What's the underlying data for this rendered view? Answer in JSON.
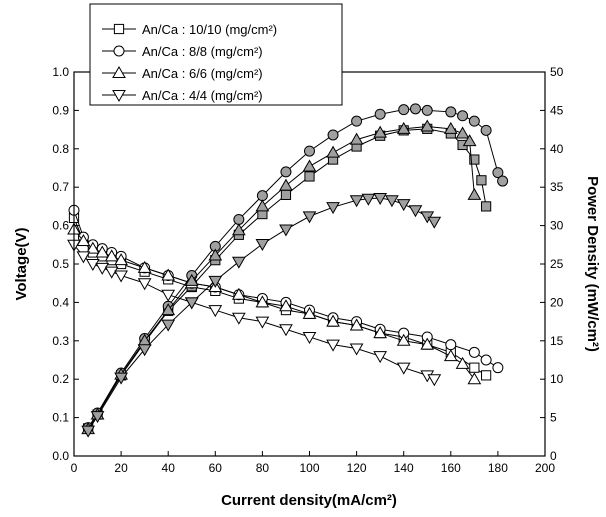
{
  "chart_data": {
    "type": "scatter",
    "xlabel": "Current density(mA/cm²)",
    "ylabel_left": "Voltage(V)",
    "ylabel_right": "Power Density (mW/cm²)",
    "xlim": [
      0,
      200
    ],
    "ylim_left": [
      0.0,
      1.0
    ],
    "ylim_right": [
      0,
      50
    ],
    "x_ticks": [
      "0",
      "20",
      "40",
      "60",
      "80",
      "100",
      "120",
      "140",
      "160",
      "180",
      "200"
    ],
    "y_left_ticks": [
      "0.0",
      "0.1",
      "0.2",
      "0.3",
      "0.4",
      "0.5",
      "0.6",
      "0.7",
      "0.8",
      "0.9",
      "1.0"
    ],
    "y_right_ticks": [
      "0",
      "5",
      "10",
      "15",
      "20",
      "25",
      "30",
      "35",
      "40",
      "45",
      "50"
    ],
    "grid": false,
    "legend_position": "top-left",
    "marker_colors": {
      "open": "#ffffff",
      "filled": "#a0a0a0",
      "stroke": "#000000"
    },
    "series": [
      {
        "name": "An/Ca : 10/10 (mg/cm²)",
        "marker": "square",
        "voltage": {
          "x": [
            0,
            4,
            8,
            12,
            16,
            20,
            30,
            40,
            50,
            60,
            70,
            80,
            90,
            100,
            110,
            120,
            130,
            140,
            150,
            160,
            170,
            175
          ],
          "y": [
            0.62,
            0.56,
            0.53,
            0.52,
            0.51,
            0.5,
            0.48,
            0.46,
            0.44,
            0.43,
            0.41,
            0.4,
            0.38,
            0.37,
            0.35,
            0.34,
            0.32,
            0.31,
            0.29,
            0.27,
            0.23,
            0.21
          ]
        },
        "power": {
          "x": [
            6,
            10,
            20,
            30,
            40,
            50,
            60,
            70,
            80,
            90,
            100,
            110,
            120,
            130,
            140,
            150,
            160,
            165,
            170,
            173,
            175
          ],
          "y": [
            3.6,
            5.4,
            10.5,
            14.8,
            18.9,
            22.1,
            25.5,
            28.8,
            31.5,
            34.0,
            36.4,
            38.6,
            40.3,
            41.7,
            42.4,
            42.6,
            42.0,
            40.5,
            38.6,
            35.9,
            32.5
          ]
        }
      },
      {
        "name": "An/Ca : 8/8 (mg/cm²)",
        "marker": "circle",
        "voltage": {
          "x": [
            0,
            4,
            8,
            12,
            16,
            20,
            30,
            40,
            50,
            60,
            70,
            80,
            90,
            100,
            110,
            120,
            130,
            140,
            150,
            160,
            170,
            175,
            180
          ],
          "y": [
            0.64,
            0.57,
            0.55,
            0.54,
            0.53,
            0.52,
            0.49,
            0.47,
            0.45,
            0.44,
            0.42,
            0.41,
            0.4,
            0.38,
            0.36,
            0.35,
            0.33,
            0.32,
            0.31,
            0.29,
            0.27,
            0.25,
            0.23
          ]
        },
        "power": {
          "x": [
            6,
            10,
            20,
            30,
            40,
            50,
            60,
            70,
            80,
            90,
            100,
            110,
            120,
            130,
            140,
            145,
            150,
            160,
            165,
            170,
            175,
            180,
            182
          ],
          "y": [
            3.7,
            5.6,
            10.8,
            15.3,
            19.5,
            23.5,
            27.3,
            30.8,
            33.9,
            37.0,
            39.7,
            41.8,
            43.6,
            44.5,
            45.1,
            45.2,
            45.0,
            44.8,
            44.3,
            43.6,
            42.4,
            36.9,
            35.8
          ]
        }
      },
      {
        "name": "An/Ca : 6/6 (mg/cm²)",
        "marker": "triangle-up",
        "voltage": {
          "x": [
            0,
            4,
            8,
            12,
            16,
            20,
            30,
            40,
            50,
            60,
            70,
            80,
            90,
            100,
            110,
            120,
            130,
            140,
            150,
            160,
            165,
            170
          ],
          "y": [
            0.59,
            0.56,
            0.54,
            0.53,
            0.52,
            0.51,
            0.49,
            0.47,
            0.45,
            0.44,
            0.42,
            0.4,
            0.39,
            0.37,
            0.35,
            0.34,
            0.32,
            0.3,
            0.29,
            0.26,
            0.24,
            0.2
          ]
        },
        "power": {
          "x": [
            6,
            10,
            20,
            30,
            40,
            50,
            60,
            70,
            80,
            90,
            100,
            110,
            120,
            130,
            140,
            150,
            160,
            165,
            168,
            170
          ],
          "y": [
            3.5,
            5.4,
            10.6,
            15.0,
            19.0,
            22.8,
            26.1,
            29.4,
            32.5,
            35.2,
            37.7,
            39.5,
            41.2,
            42.1,
            42.6,
            42.9,
            42.6,
            42.0,
            41.0,
            34.0
          ]
        }
      },
      {
        "name": "An/Ca : 4/4 (mg/cm²)",
        "marker": "triangle-down",
        "voltage": {
          "x": [
            0,
            4,
            8,
            12,
            16,
            20,
            30,
            40,
            50,
            60,
            70,
            80,
            90,
            100,
            110,
            120,
            130,
            140,
            150,
            153
          ],
          "y": [
            0.55,
            0.52,
            0.5,
            0.49,
            0.48,
            0.47,
            0.45,
            0.42,
            0.4,
            0.38,
            0.36,
            0.35,
            0.33,
            0.31,
            0.29,
            0.28,
            0.26,
            0.23,
            0.21,
            0.2
          ]
        },
        "power": {
          "x": [
            6,
            10,
            20,
            30,
            40,
            50,
            60,
            70,
            80,
            90,
            100,
            110,
            120,
            125,
            130,
            135,
            140,
            145,
            150,
            153
          ],
          "y": [
            3.3,
            5.2,
            10.2,
            13.9,
            17.1,
            20.0,
            22.8,
            25.3,
            27.6,
            29.5,
            31.2,
            32.4,
            33.3,
            33.5,
            33.6,
            33.3,
            32.8,
            32.0,
            31.2,
            30.5
          ]
        }
      }
    ]
  }
}
